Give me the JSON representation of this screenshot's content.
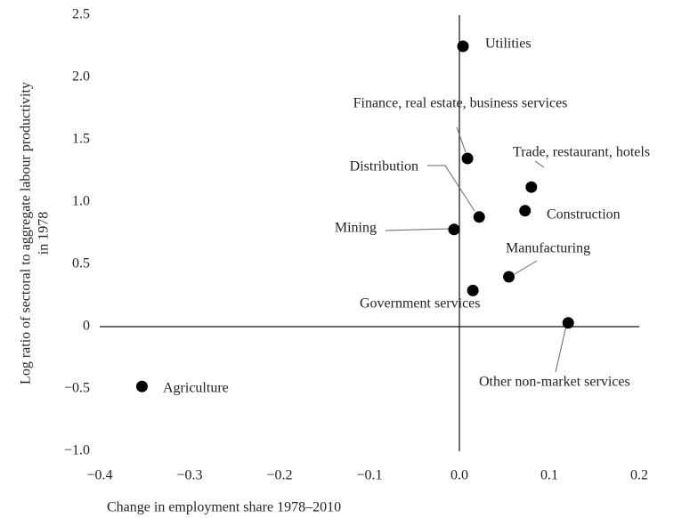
{
  "chart_data": {
    "type": "scatter",
    "xlabel": "Change in employment share 1978–2010",
    "ylabel": [
      "Log ratio of sectoral to aggregate labour productivity",
      "in 1978"
    ],
    "labels": [
      "Utilities",
      "Finance, real estate, business services",
      "Trade, restaurant, hotels",
      "Distribution",
      "Construction",
      "Mining",
      "Manufacturing",
      "Government services",
      "Other non-market services",
      "Agriculture"
    ],
    "x": [
      0.004,
      0.009,
      0.08,
      0.022,
      0.073,
      -0.006,
      0.055,
      0.015,
      0.121,
      -0.353
    ],
    "y": [
      2.25,
      1.35,
      1.12,
      0.88,
      0.93,
      0.78,
      0.4,
      0.29,
      0.03,
      -0.48
    ],
    "color": "#000000",
    "xlim": [
      -0.4,
      0.2
    ],
    "ylim": [
      -1.0,
      2.5
    ],
    "xticks": [
      {
        "value": -0.4,
        "label": "−0.4"
      },
      {
        "value": -0.3,
        "label": "−0.3"
      },
      {
        "value": -0.2,
        "label": "−0.2"
      },
      {
        "value": -0.1,
        "label": "−0.1"
      },
      {
        "value": 0,
        "label": "0.0"
      },
      0.1,
      0.2
    ],
    "yticks": [
      {
        "value": -1.0,
        "label": "−1.0"
      },
      {
        "value": -0.5,
        "label": "−0.5"
      },
      0,
      0.5,
      {
        "value": 1.0,
        "label": "1.0"
      },
      1.5,
      {
        "value": 2.0,
        "label": "2.0"
      },
      2.5
    ]
  }
}
